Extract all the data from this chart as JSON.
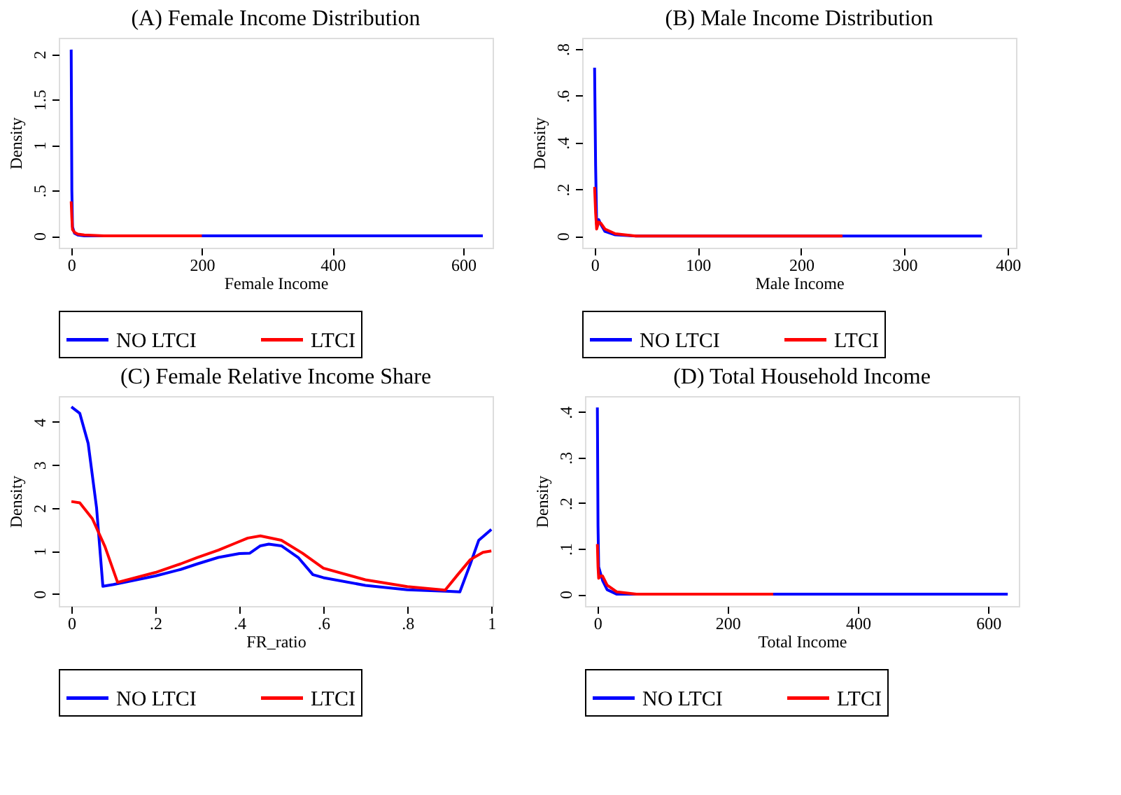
{
  "chart_data": [
    {
      "type": "line",
      "title": "(A) Female Income Distribution",
      "xlabel": "Female Income",
      "ylabel": "Density",
      "xlim": [
        -19,
        645
      ],
      "ylim": [
        -0.13,
        2.18
      ],
      "xticks": [
        0,
        200,
        400,
        600
      ],
      "yticks": [
        0,
        {
          "value": 0.5,
          "label": ".5"
        },
        1,
        1.5,
        2
      ],
      "grid": false,
      "legend": "bottom",
      "marker": "none",
      "line_style": "solid",
      "series": [
        {
          "name": "NO LTCI",
          "color": "#0000ff",
          "x": [
            0,
            1,
            2,
            5,
            10,
            20,
            50,
            630
          ],
          "values": [
            2.05,
            0.5,
            0.1,
            0.03,
            0.01,
            0,
            0,
            0
          ]
        },
        {
          "name": "LTCI",
          "color": "#ff0000",
          "x": [
            0,
            1,
            2,
            5,
            10,
            20,
            50,
            200
          ],
          "values": [
            0.38,
            0.2,
            0.07,
            0.04,
            0.02,
            0.01,
            0,
            0
          ]
        }
      ]
    },
    {
      "type": "line",
      "title": "(B) Male Income Distribution",
      "xlabel": "Male Income",
      "ylabel": "Density",
      "xlim": [
        -12,
        408
      ],
      "ylim": [
        -0.05,
        0.848
      ],
      "xticks": [
        0,
        100,
        200,
        300,
        400
      ],
      "yticks": [
        0,
        {
          "value": 0.2,
          "label": ".2"
        },
        {
          "value": 0.4,
          "label": ".4"
        },
        {
          "value": 0.6,
          "label": ".6"
        },
        {
          "value": 0.8,
          "label": ".8"
        }
      ],
      "grid": false,
      "legend": "bottom",
      "marker": "none",
      "line_style": "solid",
      "series": [
        {
          "name": "NO LTCI",
          "color": "#0000ff",
          "x": [
            0,
            1,
            2,
            4,
            6,
            10,
            20,
            40,
            375
          ],
          "values": [
            0.72,
            0.3,
            0.05,
            0.07,
            0.05,
            0.02,
            0.005,
            0,
            0
          ]
        },
        {
          "name": "LTCI",
          "color": "#ff0000",
          "x": [
            0,
            1,
            2,
            4,
            6,
            10,
            20,
            40,
            240
          ],
          "values": [
            0.21,
            0.1,
            0.03,
            0.06,
            0.055,
            0.03,
            0.01,
            0,
            0
          ]
        }
      ]
    },
    {
      "type": "line",
      "title": "(C) Female Relative Income Share",
      "xlabel": "FR_ratio",
      "ylabel": "Density",
      "xlim": [
        -0.03,
        1.003
      ],
      "ylim": [
        -0.28,
        4.6
      ],
      "xticks": [
        0,
        {
          "value": 0.2,
          "label": ".2"
        },
        {
          "value": 0.4,
          "label": ".4"
        },
        {
          "value": 0.6,
          "label": ".6"
        },
        {
          "value": 0.8,
          "label": ".8"
        },
        1
      ],
      "yticks": [
        0,
        1,
        2,
        3,
        4
      ],
      "grid": false,
      "legend": "bottom",
      "marker": "none",
      "line_style": "solid",
      "series": [
        {
          "name": "NO LTCI",
          "color": "#0000ff",
          "x": [
            0,
            0.02,
            0.04,
            0.06,
            0.075,
            0.1,
            0.2,
            0.26,
            0.3,
            0.35,
            0.4,
            0.425,
            0.45,
            0.47,
            0.5,
            0.54,
            0.575,
            0.6,
            0.7,
            0.8,
            0.9,
            0.925,
            0.95,
            0.97,
            1
          ],
          "values": [
            4.35,
            4.2,
            3.5,
            2,
            0.18,
            0.22,
            0.42,
            0.57,
            0.7,
            0.85,
            0.94,
            0.95,
            1.12,
            1.16,
            1.12,
            0.85,
            0.45,
            0.38,
            0.2,
            0.1,
            0.06,
            0.05,
            0.7,
            1.25,
            1.5
          ]
        },
        {
          "name": "LTCI",
          "color": "#ff0000",
          "x": [
            0,
            0.02,
            0.05,
            0.08,
            0.11,
            0.2,
            0.26,
            0.3,
            0.35,
            0.39,
            0.42,
            0.45,
            0.5,
            0.55,
            0.6,
            0.7,
            0.8,
            0.89,
            0.92,
            0.95,
            0.98,
            1
          ],
          "values": [
            2.15,
            2.12,
            1.75,
            1.1,
            0.27,
            0.5,
            0.7,
            0.85,
            1.02,
            1.18,
            1.3,
            1.35,
            1.25,
            0.95,
            0.6,
            0.33,
            0.17,
            0.09,
            0.45,
            0.8,
            0.97,
            1.0
          ]
        }
      ]
    },
    {
      "type": "line",
      "title": "(D) Total Household Income",
      "xlabel": "Total Income",
      "ylabel": "Density",
      "xlim": [
        -19,
        647
      ],
      "ylim": [
        -0.026,
        0.435
      ],
      "xticks": [
        0,
        200,
        400,
        600
      ],
      "yticks": [
        0,
        {
          "value": 0.1,
          "label": ".1"
        },
        {
          "value": 0.2,
          "label": ".2"
        },
        {
          "value": 0.3,
          "label": ".3"
        },
        {
          "value": 0.4,
          "label": ".4"
        }
      ],
      "grid": false,
      "legend": "bottom",
      "marker": "none",
      "line_style": "solid",
      "series": [
        {
          "name": "NO LTCI",
          "color": "#0000ff",
          "x": [
            0,
            1,
            2,
            4,
            8,
            15,
            30,
            60,
            630
          ],
          "values": [
            0.41,
            0.15,
            0.06,
            0.05,
            0.03,
            0.01,
            0,
            0,
            0
          ]
        },
        {
          "name": "LTCI",
          "color": "#ff0000",
          "x": [
            0,
            1,
            2,
            5,
            8,
            15,
            30,
            60,
            270
          ],
          "values": [
            0.11,
            0.06,
            0.035,
            0.04,
            0.04,
            0.02,
            0.005,
            0,
            0
          ]
        }
      ]
    }
  ]
}
